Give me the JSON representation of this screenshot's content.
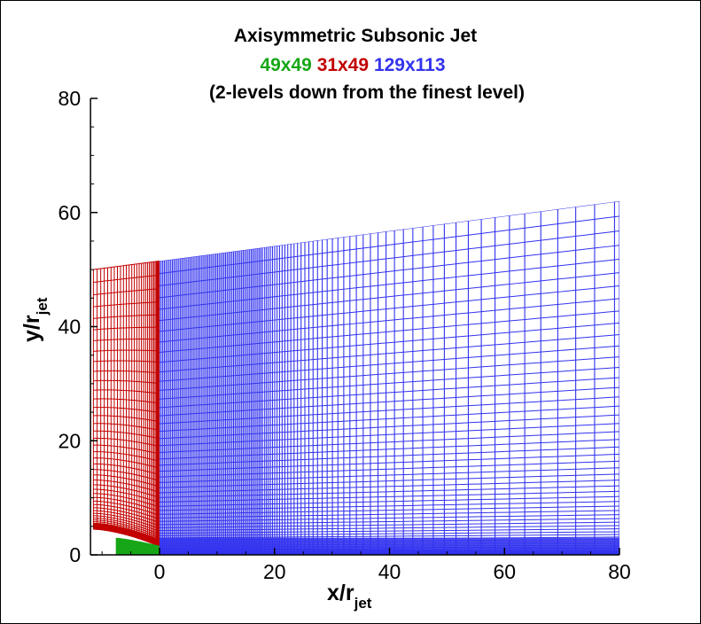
{
  "chart_data": {
    "type": "line",
    "title": "Axisymmetric Subsonic Jet",
    "subtitle": "(2-levels down from the finest level)",
    "legend": [
      {
        "name": "49x49",
        "color": "#17a617"
      },
      {
        "name": "31x49",
        "color": "#c20000"
      },
      {
        "name": "129x113",
        "color": "#3333ee"
      }
    ],
    "xlabel": {
      "main": "x/r",
      "sub": "jet"
    },
    "ylabel": {
      "main": "y/r",
      "sub": "jet"
    },
    "xlim": [
      -12,
      80
    ],
    "ylim": [
      0,
      80
    ],
    "xticks": [
      0,
      20,
      40,
      60,
      80
    ],
    "yticks": [
      0,
      20,
      40,
      60,
      80
    ],
    "xtick_labels": [
      "0",
      "20",
      "40",
      "60",
      "80"
    ],
    "ytick_labels": [
      "0",
      "20",
      "40",
      "60",
      "80"
    ],
    "grid": false,
    "series": [
      {
        "name": "49x49",
        "color": "#17a617",
        "region": {
          "x": [
            -7.6,
            0
          ],
          "y_top_at_xmin": 3.0,
          "y_top_at_xmax": 1.6,
          "y_bottom": 0
        }
      },
      {
        "name": "31x49",
        "color": "#c20000",
        "region": {
          "x": [
            -11.5,
            0
          ],
          "y_top_at_xmin": 50.0,
          "y_top_at_xmax": 51.5,
          "y_bottom_at_xmin": 4.5,
          "y_bottom_at_xmax": 1.5
        }
      },
      {
        "name": "129x113",
        "color": "#3333ee",
        "region": {
          "x": [
            0,
            80
          ],
          "y_top_at_xmin": 51.5,
          "y_top_at_xmax": 62.0,
          "y_bottom": 0
        }
      }
    ]
  }
}
